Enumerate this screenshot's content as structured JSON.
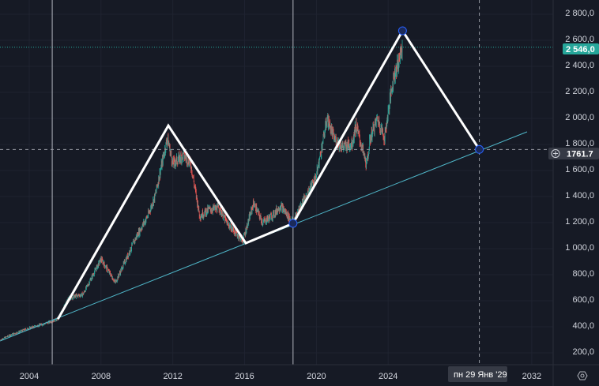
{
  "chart_data": {
    "type": "candlestick",
    "title": "",
    "xlabel": "",
    "ylabel": "",
    "xlim": [
      2002.4,
      2033.1
    ],
    "ylim": [
      80,
      2890
    ],
    "x_ticks": [
      "2004",
      "2008",
      "2012",
      "2016",
      "2020",
      "2024",
      "2032"
    ],
    "y_ticks": [
      "200,0",
      "400,0",
      "600,0",
      "800,0",
      "1 000,0",
      "1 200,0",
      "1 400,0",
      "1 600,0",
      "1 800,0",
      "2 000,0",
      "2 200,0",
      "2 400,0",
      "2 600,0",
      "2 800,0"
    ],
    "y_tick_values": [
      200,
      400,
      600,
      800,
      1000,
      1200,
      1400,
      1600,
      1800,
      2000,
      2200,
      2400,
      2600,
      2800
    ],
    "x_tick_values": [
      2004,
      2008,
      2012,
      2016,
      2020,
      2024,
      2032
    ],
    "price_path": [
      [
        2002.4,
        300
      ],
      [
        2003,
        340
      ],
      [
        2004,
        390
      ],
      [
        2005,
        430
      ],
      [
        2005.6,
        460
      ],
      [
        2006.2,
        620
      ],
      [
        2007,
        650
      ],
      [
        2008,
        920
      ],
      [
        2008.8,
        740
      ],
      [
        2009.5,
        950
      ],
      [
        2010,
        1100
      ],
      [
        2010.6,
        1250
      ],
      [
        2011,
        1400
      ],
      [
        2011.7,
        1850
      ],
      [
        2012,
        1650
      ],
      [
        2012.6,
        1720
      ],
      [
        2013,
        1650
      ],
      [
        2013.5,
        1250
      ],
      [
        2014,
        1300
      ],
      [
        2014.6,
        1310
      ],
      [
        2015,
        1200
      ],
      [
        2015.9,
        1060
      ],
      [
        2016.5,
        1350
      ],
      [
        2017,
        1200
      ],
      [
        2017.6,
        1260
      ],
      [
        2018,
        1330
      ],
      [
        2018.7,
        1200
      ],
      [
        2019,
        1300
      ],
      [
        2019.5,
        1420
      ],
      [
        2020,
        1560
      ],
      [
        2020.6,
        2000
      ],
      [
        2021,
        1840
      ],
      [
        2021.5,
        1780
      ],
      [
        2022,
        1810
      ],
      [
        2022.2,
        1950
      ],
      [
        2022.8,
        1640
      ],
      [
        2023,
        1850
      ],
      [
        2023.4,
        2000
      ],
      [
        2023.8,
        1850
      ],
      [
        2024,
        2050
      ],
      [
        2024.3,
        2320
      ],
      [
        2024.5,
        2400
      ],
      [
        2024.8,
        2546
      ]
    ],
    "last_price": {
      "value": 2546,
      "label": "2 546,0",
      "color": "#26a69a"
    },
    "crosshair": {
      "value": 1761.7,
      "label": "1761,7",
      "date_label": "пн 29 Янв '29",
      "x": 2029.08
    },
    "zigzag": [
      [
        2005.6,
        460
      ],
      [
        2011.75,
        1945
      ],
      [
        2016.07,
        1042
      ],
      [
        2018.7,
        1194
      ],
      [
        2024.8,
        2673
      ],
      [
        2029.08,
        1762
      ]
    ],
    "zigzag_points_marked": [
      3,
      4,
      5
    ],
    "trend_line": [
      [
        2002.37,
        291
      ],
      [
        2031.74,
        1897
      ]
    ],
    "vertical_lines": [
      2005.28,
      2018.7
    ],
    "colors": {
      "up": "#26a69a",
      "down": "#ef5350",
      "trend": "#4fb6c8",
      "zigzag": "#ffffff",
      "bg": "#161a25"
    }
  }
}
